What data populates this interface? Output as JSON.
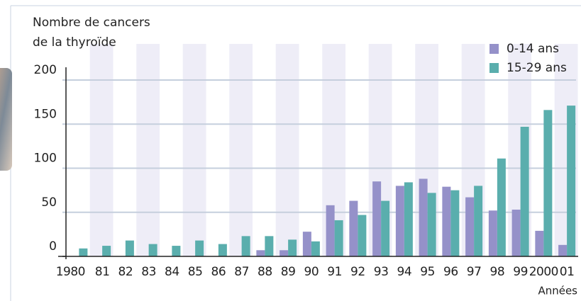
{
  "chart_data": {
    "type": "bar",
    "ylabel": [
      "Nombre de cancers",
      "de la thyroïde"
    ],
    "xlabel": "Années",
    "categories": [
      "1980",
      "81",
      "82",
      "83",
      "84",
      "85",
      "86",
      "87",
      "88",
      "89",
      "90",
      "91",
      "92",
      "93",
      "94",
      "95",
      "96",
      "97",
      "98",
      "99",
      "2000",
      "01"
    ],
    "series": [
      {
        "name": "0-14 ans",
        "color": "#9591c9",
        "values": [
          0,
          0,
          0,
          0,
          0,
          0,
          0,
          0,
          7,
          7,
          28,
          58,
          63,
          85,
          80,
          88,
          79,
          67,
          52,
          53,
          29,
          13
        ]
      },
      {
        "name": "15-29 ans",
        "color": "#5aaead",
        "values": [
          9,
          12,
          18,
          14,
          12,
          18,
          14,
          23,
          23,
          19,
          17,
          41,
          47,
          63,
          84,
          72,
          75,
          80,
          111,
          147,
          166,
          171
        ]
      }
    ],
    "ylim": [
      0,
      200
    ],
    "yticks": [
      0,
      50,
      100,
      150,
      200
    ],
    "grid": true,
    "legend": "top-right"
  }
}
